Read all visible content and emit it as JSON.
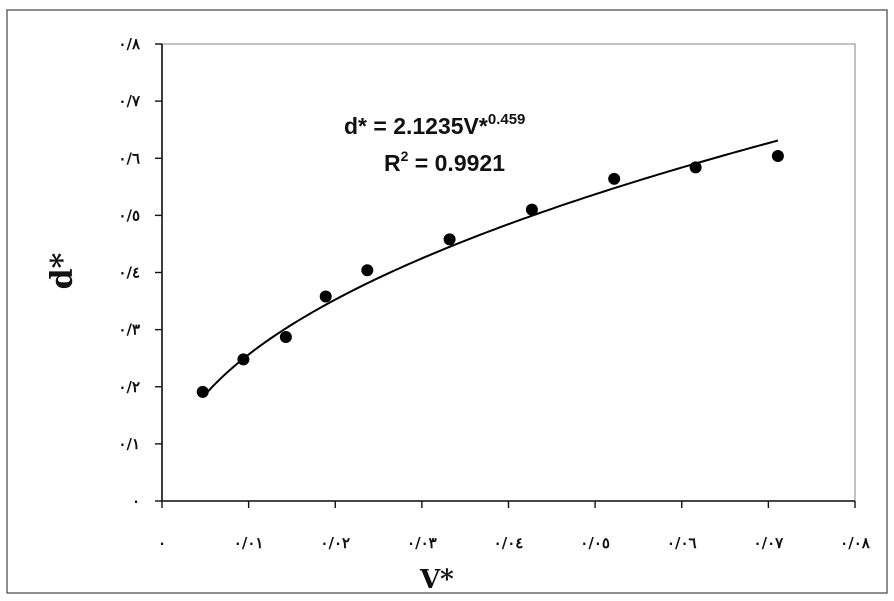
{
  "chart_data": {
    "type": "scatter",
    "title": "",
    "xlabel": "V*",
    "ylabel": "d*",
    "xlim": [
      0,
      0.08
    ],
    "ylim": [
      0,
      0.8
    ],
    "x_ticks": [
      0,
      0.01,
      0.02,
      0.03,
      0.04,
      0.05,
      0.06,
      0.07,
      0.08
    ],
    "x_tick_labels": [
      "٠",
      "٠/٠١",
      "٠/٠٢",
      "٠/٠٣",
      "٠/٠٤",
      "٠/٠٥",
      "٠/٠٦",
      "٠/٠٧",
      "٠/٠٨"
    ],
    "y_ticks": [
      0,
      0.1,
      0.2,
      0.3,
      0.4,
      0.5,
      0.6,
      0.7,
      0.8
    ],
    "y_tick_labels": [
      "٠",
      "٠/١",
      "٠/٢",
      "٠/٣",
      "٠/٤",
      "٠/٥",
      "٠/٦",
      "٠/٧",
      "٠/٨"
    ],
    "grid": false,
    "legend": "none",
    "series": [
      {
        "marker": "circle",
        "color": "#000000",
        "points": [
          {
            "x": 0.0047,
            "y": 0.191
          },
          {
            "x": 0.0094,
            "y": 0.248
          },
          {
            "x": 0.0143,
            "y": 0.287
          },
          {
            "x": 0.0189,
            "y": 0.358
          },
          {
            "x": 0.0237,
            "y": 0.404
          },
          {
            "x": 0.0332,
            "y": 0.458
          },
          {
            "x": 0.0427,
            "y": 0.51
          },
          {
            "x": 0.0522,
            "y": 0.564
          },
          {
            "x": 0.0616,
            "y": 0.584
          },
          {
            "x": 0.0711,
            "y": 0.604
          }
        ]
      }
    ],
    "trendline": {
      "type": "power",
      "coefficient": 2.1235,
      "exponent": 0.459,
      "x_range": [
        0.0047,
        0.0711
      ],
      "color": "#000000"
    },
    "annotation": {
      "equation_lhs": "d* = 2.1235V*",
      "equation_exponent": "0.459",
      "r2_prefix": "R",
      "r2_sup": "2",
      "r2_value": " = 0.9921"
    }
  }
}
